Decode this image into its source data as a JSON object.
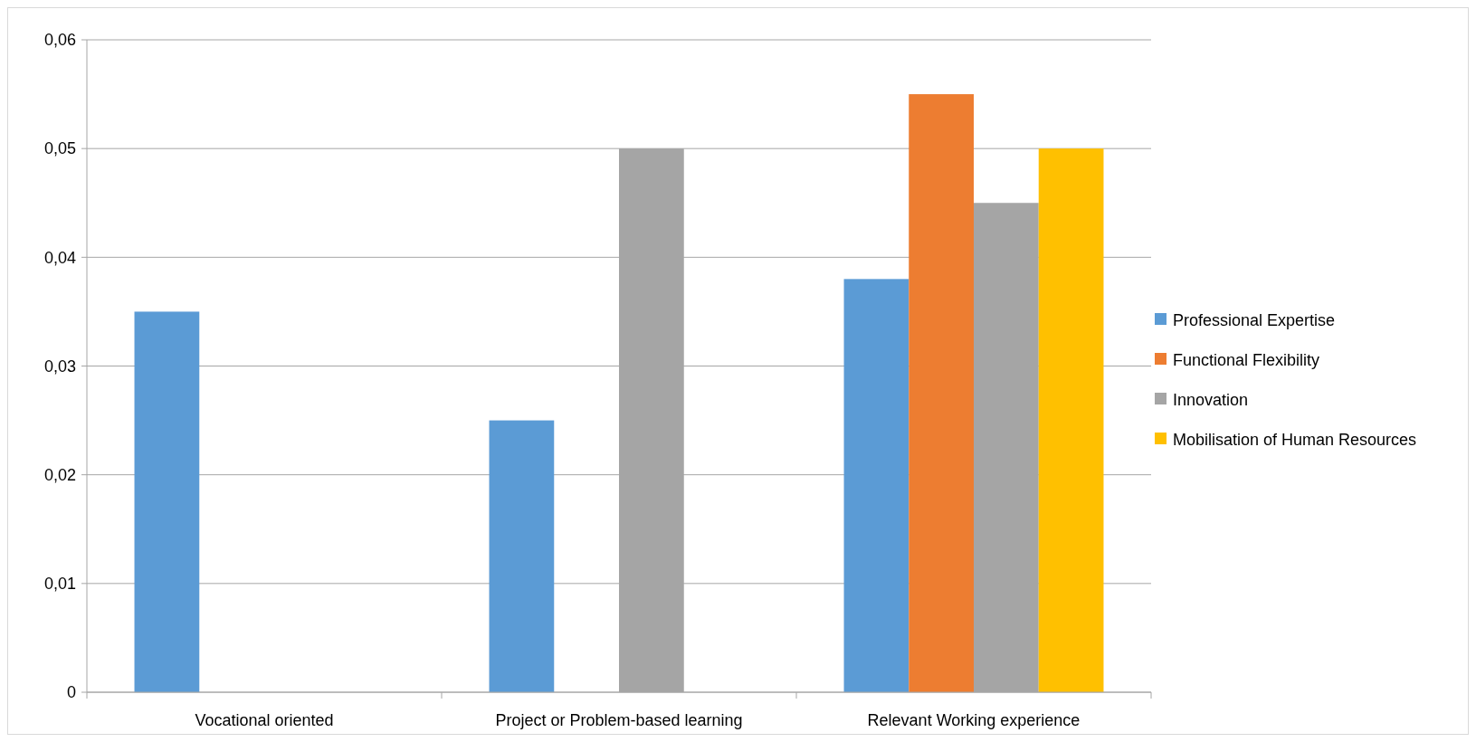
{
  "chart_data": {
    "type": "bar",
    "categories": [
      "Vocational oriented",
      "Project or Problem-based learning",
      "Relevant Working experience"
    ],
    "series": [
      {
        "name": "Professional Expertise",
        "color": "#5b9bd5",
        "values": [
          0.035,
          0.025,
          0.038
        ]
      },
      {
        "name": "Functional Flexibility",
        "color": "#ed7d31",
        "values": [
          null,
          null,
          0.055
        ]
      },
      {
        "name": "Innovation",
        "color": "#a5a5a5",
        "values": [
          null,
          0.05,
          0.045
        ]
      },
      {
        "name": "Mobilisation of Human Resources",
        "color": "#ffc000",
        "values": [
          null,
          null,
          0.05
        ]
      }
    ],
    "ylim": [
      0,
      0.06
    ],
    "yticks": [
      0,
      {
        "value": 0.01,
        "label": "0,01"
      },
      {
        "value": 0.02,
        "label": "0,02"
      },
      {
        "value": 0.03,
        "label": "0,03"
      },
      {
        "value": 0.04,
        "label": "0,04"
      },
      {
        "value": 0.05,
        "label": "0,05"
      },
      {
        "value": 0.06,
        "label": "0,06"
      }
    ],
    "grid": "y",
    "legend": "right"
  }
}
